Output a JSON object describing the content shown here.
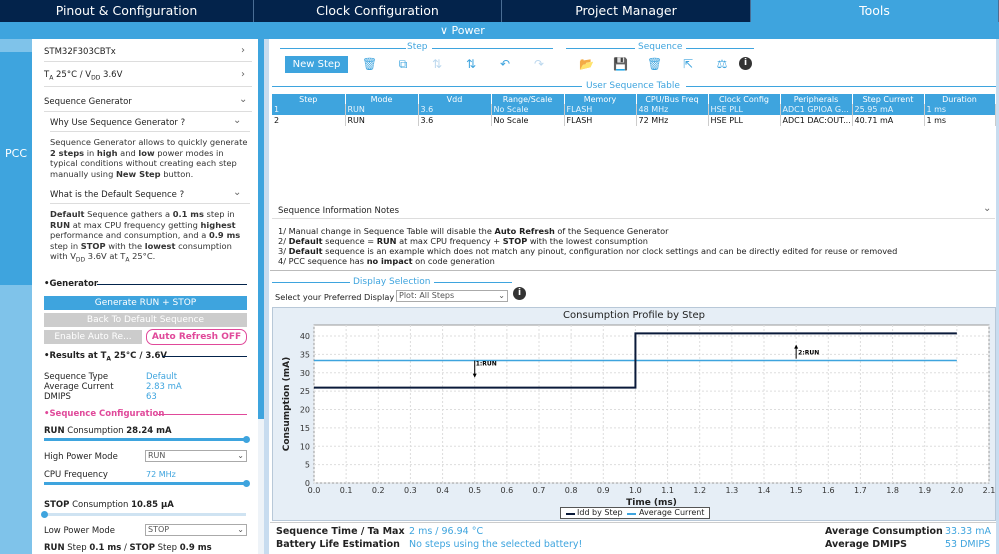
{
  "tabs": [
    {
      "label": "Pinout & Configuration"
    },
    {
      "label": "Clock Configuration"
    },
    {
      "label": "Project Manager"
    },
    {
      "label": "Tools"
    }
  ],
  "subbar": {
    "label": "∨ Power"
  },
  "side_strip": {
    "label": "PCC"
  },
  "left_panel": {
    "mcu": "STM32F303CBTx",
    "conditions_prefix": "T",
    "conditions_sub1": "A",
    "conditions_mid": " 25°C / V",
    "conditions_sub2": "DD",
    "conditions_suffix": " 3.6V",
    "seq_gen_title": "Sequence Generator",
    "why_title": "Why Use Sequence Generator ?",
    "why_text_1": "Sequence Generator allows to quickly generate",
    "why_text_2a": "2 steps",
    "why_text_2b": " in ",
    "why_text_2c": "high",
    "why_text_2d": " and ",
    "why_text_2e": "low",
    "why_text_2f": " power modes in",
    "why_text_3": "typical conditions without creating each step",
    "why_text_4a": "manually using ",
    "why_text_4b": "New Step",
    "why_text_4c": " button.",
    "default_title": "What is the Default Sequence ?",
    "def_1a": "Default",
    "def_1b": " Sequence gathers a ",
    "def_1c": "0.1 ms",
    "def_1d": " step in",
    "def_2a": "RUN",
    "def_2b": " at max CPU frequency getting ",
    "def_2c": "highest",
    "def_3a": "performance and consumption, and a ",
    "def_3b": "0.9 ms",
    "def_4a": "step in ",
    "def_4b": "STOP",
    "def_4c": " with the ",
    "def_4d": "lowest",
    "def_4e": " consumption",
    "def_5a": "with V",
    "def_5b": "DD",
    "def_5c": " 3.6V at T",
    "def_5d": "A",
    "def_5e": " 25°C.",
    "generator_title": "Generator",
    "gen_button": "Generate RUN + STOP",
    "back_default": "Back To Default Sequence",
    "enable_auto": "Enable Auto Re...",
    "auto_refresh": "Auto Refresh OFF",
    "results_title_a": "Results at T",
    "results_title_b": "A",
    "results_title_c": " 25°C / 3.6V",
    "results": [
      {
        "k": "Sequence Type",
        "v": "Default"
      },
      {
        "k": "Average Current",
        "v": "2.83 mA"
      },
      {
        "k": "DMIPS",
        "v": "63"
      }
    ],
    "seq_config_title": "Sequence Configuration",
    "run_consumption_label": "RUN",
    "run_consumption_text": " Consumption ",
    "run_consumption_value": "28.24 mA",
    "run_slider_fraction": 1.0,
    "high_power_mode_label": "High Power Mode",
    "high_power_mode_value": "RUN",
    "cpu_freq_label": "CPU Frequency",
    "cpu_freq_value": "72 MHz",
    "cpu_slider_fraction": 1.0,
    "stop_consumption_label": "STOP",
    "stop_consumption_text": " Consumption ",
    "stop_consumption_value": "10.85 µA",
    "stop_slider_fraction": 0.0,
    "low_power_mode_label": "Low Power Mode",
    "low_power_mode_value": "STOP",
    "bottom_a": "RUN",
    "bottom_b": " Step ",
    "bottom_c": "0.1 ms",
    "bottom_d": " / ",
    "bottom_e": "STOP",
    "bottom_f": " Step ",
    "bottom_g": "0.9 ms"
  },
  "toolbar": {
    "step_group": "Step",
    "sequence_group": "Sequence",
    "new_step": "New Step",
    "step_icons": [
      "trash-icon",
      "copy-icon",
      "move-up-icon",
      "move-down-icon",
      "undo-icon",
      "redo-icon"
    ],
    "sequence_icons": [
      "open-folder-icon",
      "save-icon",
      "trash-icon",
      "export-icon",
      "compare-icon",
      "info-icon"
    ]
  },
  "sequence_table": {
    "title": "User Sequence Table",
    "columns": [
      "Step",
      "Mode",
      "Vdd",
      "Range/Scale",
      "Memory",
      "CPU/Bus Freq",
      "Clock Config",
      "Peripherals",
      "Step Current",
      "Duration"
    ],
    "rows": [
      [
        "1",
        "RUN",
        "3.6",
        "No Scale",
        "FLASH",
        "48 MHz",
        "HSE PLL",
        "ADC1 GPIOA G...",
        "25.95 mA",
        "1 ms"
      ],
      [
        "2",
        "RUN",
        "3.6",
        "No Scale",
        "FLASH",
        "72 MHz",
        "HSE PLL",
        "ADC1 DAC:OUT...",
        "40.71 mA",
        "1 ms"
      ]
    ]
  },
  "notes": {
    "title": "Sequence Information Notes",
    "n1a": "1/ Manual change in Sequence Table will disable the ",
    "n1b": "Auto Refresh",
    "n1c": " of the Sequence Generator",
    "n2a": "2/ ",
    "n2b": "Default",
    "n2c": " sequence = ",
    "n2d": "RUN",
    "n2e": " at max CPU frequency + ",
    "n2f": "STOP",
    "n2g": " with the lowest consumption",
    "n3a": "3/ ",
    "n3b": "Default",
    "n3c": " sequence is an example which does not match any pinout, configuration nor clock settings and can be directly edited for reuse or removed",
    "n4a": "4/ PCC sequence has ",
    "n4b": "no impact",
    "n4c": " on code generation"
  },
  "display": {
    "title": "Display Selection",
    "label": "Select your Preferred Display",
    "value": "Plot: All Steps"
  },
  "chart_data": {
    "type": "line",
    "title": "Consumption Profile by Step",
    "xlabel": "Time (ms)",
    "ylabel": "Consumption (mA)",
    "xlim": [
      0.0,
      2.1
    ],
    "ylim": [
      0,
      43
    ],
    "xticks": [
      "0.0",
      "0.1",
      "0.2",
      "0.3",
      "0.4",
      "0.5",
      "0.6",
      "0.7",
      "0.8",
      "0.9",
      "1.0",
      "1.1",
      "1.2",
      "1.3",
      "1.4",
      "1.5",
      "1.6",
      "1.7",
      "1.8",
      "1.9",
      "2.0",
      "2.1"
    ],
    "yticks": [
      "0",
      "5",
      "10",
      "15",
      "20",
      "25",
      "30",
      "35",
      "40"
    ],
    "grid": true,
    "legend_position": "bottom",
    "series": [
      {
        "name": "Idd by Step",
        "color": "#0a1a3a",
        "x": [
          0,
          1.0,
          1.0,
          2.0
        ],
        "y": [
          25.95,
          25.95,
          40.71,
          40.71
        ]
      },
      {
        "name": "Average Current",
        "color": "#3ea4de",
        "x": [
          0,
          2.0
        ],
        "y": [
          33.33,
          33.33
        ]
      }
    ],
    "annotations": [
      {
        "text": "1:RUN",
        "x": 0.5,
        "y": 33.3,
        "dir": "down"
      },
      {
        "text": "2:RUN",
        "x": 1.5,
        "y": 33.3,
        "dir": "up"
      }
    ]
  },
  "summary": {
    "seq_time_label": "Sequence Time / Ta Max",
    "seq_time_value": "2 ms / 96.94 °C",
    "battery_label": "Battery Life Estimation",
    "battery_value": "No steps using the selected battery!",
    "avg_cons_label": "Average Consumption",
    "avg_cons_value": "33.33 mA",
    "avg_dmips_label": "Average DMIPS",
    "avg_dmips_value": "53 DMIPS"
  },
  "colors": {
    "accent": "#3ea4de",
    "dark": "#03234b",
    "pink": "#e0499a"
  }
}
